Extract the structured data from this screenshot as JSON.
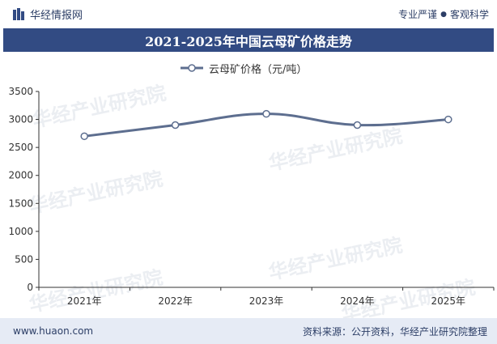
{
  "header": {
    "brand": "华经情报网",
    "tagline_left": "专业严谨",
    "tagline_sep": "●",
    "tagline_right": "客观科学"
  },
  "watermark_text": "华经产业研究院",
  "footer": {
    "url": "www.huaon.com",
    "source": "资料来源：公开资料，华经产业研究院整理"
  },
  "colors": {
    "brand": "#324b83",
    "line": "#5d6e8f",
    "footer_bg": "#e6ebf5"
  },
  "chart_data": {
    "type": "line",
    "title": "2021-2025年中国云母矿价格走势",
    "categories": [
      "2021年",
      "2022年",
      "2023年",
      "2024年",
      "2025年"
    ],
    "series": [
      {
        "name": "云母矿价格（元/吨）",
        "values": [
          2700,
          2900,
          3100,
          2900,
          3000
        ]
      }
    ],
    "ylim": [
      0,
      3500
    ],
    "yticks": [
      0,
      500,
      1000,
      1500,
      2000,
      2500,
      3000,
      3500
    ],
    "grid": false,
    "legend": "top-center",
    "smooth": true
  }
}
